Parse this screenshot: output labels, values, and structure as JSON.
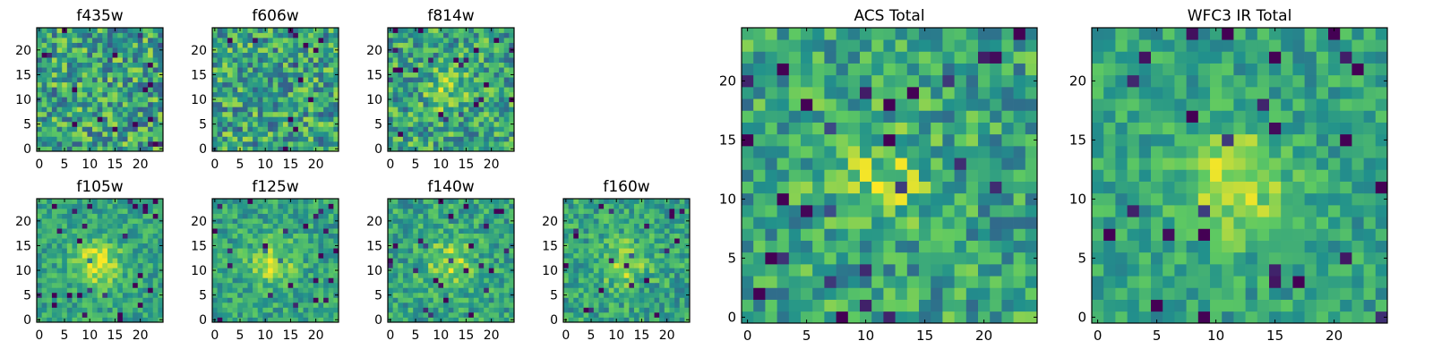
{
  "palette": {
    "colormap": "viridis",
    "stops": [
      "#440154",
      "#3b528b",
      "#21918c",
      "#5ec962",
      "#fde725"
    ],
    "axes_frame": "#000000",
    "text": "#000000",
    "background": "#ffffff"
  },
  "chart_data": [
    {
      "type": "heatmap",
      "title": "f435w",
      "x_ticks": [
        "0",
        "5",
        "10",
        "15",
        "20"
      ],
      "y_ticks": [
        "0",
        "5",
        "10",
        "15",
        "20"
      ],
      "xlim": [
        -0.5,
        24.5
      ],
      "ylim": [
        -0.5,
        24.5
      ],
      "grid": false,
      "grid_size": 25,
      "description": "pixel noise, no clear central source",
      "signal": 0.0,
      "noise": 1.0
    },
    {
      "type": "heatmap",
      "title": "f606w",
      "x_ticks": [
        "0",
        "5",
        "10",
        "15",
        "20"
      ],
      "y_ticks": [
        "0",
        "5",
        "10",
        "15",
        "20"
      ],
      "xlim": [
        -0.5,
        24.5
      ],
      "ylim": [
        -0.5,
        24.5
      ],
      "grid": false,
      "grid_size": 25,
      "description": "pixel noise",
      "signal": 0.0,
      "noise": 1.0
    },
    {
      "type": "heatmap",
      "title": "f814w",
      "x_ticks": [
        "0",
        "5",
        "10",
        "15",
        "20"
      ],
      "y_ticks": [
        "0",
        "5",
        "10",
        "15",
        "20"
      ],
      "xlim": [
        -0.5,
        24.5
      ],
      "ylim": [
        -0.5,
        24.5
      ],
      "grid": false,
      "grid_size": 25,
      "description": "faint source near centre",
      "signal": 0.5,
      "noise": 0.9
    },
    {
      "type": "heatmap",
      "title": "f105w",
      "x_ticks": [
        "0",
        "5",
        "10",
        "15",
        "20"
      ],
      "y_ticks": [
        "0",
        "5",
        "10",
        "15",
        "20"
      ],
      "xlim": [
        -0.5,
        24.5
      ],
      "ylim": [
        -0.5,
        24.5
      ],
      "grid": false,
      "grid_size": 25,
      "description": "bright source near centre",
      "signal": 1.1,
      "noise": 0.55
    },
    {
      "type": "heatmap",
      "title": "f125w",
      "x_ticks": [
        "0",
        "5",
        "10",
        "15",
        "20"
      ],
      "y_ticks": [
        "0",
        "5",
        "10",
        "15",
        "20"
      ],
      "xlim": [
        -0.5,
        24.5
      ],
      "ylim": [
        -0.5,
        24.5
      ],
      "grid": false,
      "grid_size": 25,
      "description": "source near centre",
      "signal": 0.9,
      "noise": 0.6
    },
    {
      "type": "heatmap",
      "title": "f140w",
      "x_ticks": [
        "0",
        "5",
        "10",
        "15",
        "20"
      ],
      "y_ticks": [
        "0",
        "5",
        "10",
        "15",
        "20"
      ],
      "xlim": [
        -0.5,
        24.5
      ],
      "ylim": [
        -0.5,
        24.5
      ],
      "grid": false,
      "grid_size": 25,
      "description": "source near centre",
      "signal": 0.8,
      "noise": 0.65
    },
    {
      "type": "heatmap",
      "title": "f160w",
      "x_ticks": [
        "0",
        "5",
        "10",
        "15",
        "20"
      ],
      "y_ticks": [
        "0",
        "5",
        "10",
        "15",
        "20"
      ],
      "xlim": [
        -0.5,
        24.5
      ],
      "ylim": [
        -0.5,
        24.5
      ],
      "grid": false,
      "grid_size": 25,
      "description": "source near centre",
      "signal": 0.8,
      "noise": 0.65
    },
    {
      "type": "heatmap",
      "title": "ACS Total",
      "x_ticks": [
        "0",
        "5",
        "10",
        "15",
        "20"
      ],
      "y_ticks": [
        "0",
        "5",
        "10",
        "15",
        "20"
      ],
      "xlim": [
        -0.5,
        24.5
      ],
      "ylim": [
        -0.5,
        24.5
      ],
      "grid": false,
      "grid_size": 25,
      "description": "combined ACS stack, noisy with faint centre",
      "signal": 0.6,
      "noise": 0.8
    },
    {
      "type": "heatmap",
      "title": "WFC3 IR Total",
      "x_ticks": [
        "0",
        "5",
        "10",
        "15",
        "20"
      ],
      "y_ticks": [
        "0",
        "5",
        "10",
        "15",
        "20"
      ],
      "xlim": [
        -0.5,
        24.5
      ],
      "ylim": [
        -0.5,
        24.5
      ],
      "grid": false,
      "grid_size": 25,
      "description": "combined IR stack, source near centre",
      "signal": 1.0,
      "noise": 0.55
    }
  ]
}
